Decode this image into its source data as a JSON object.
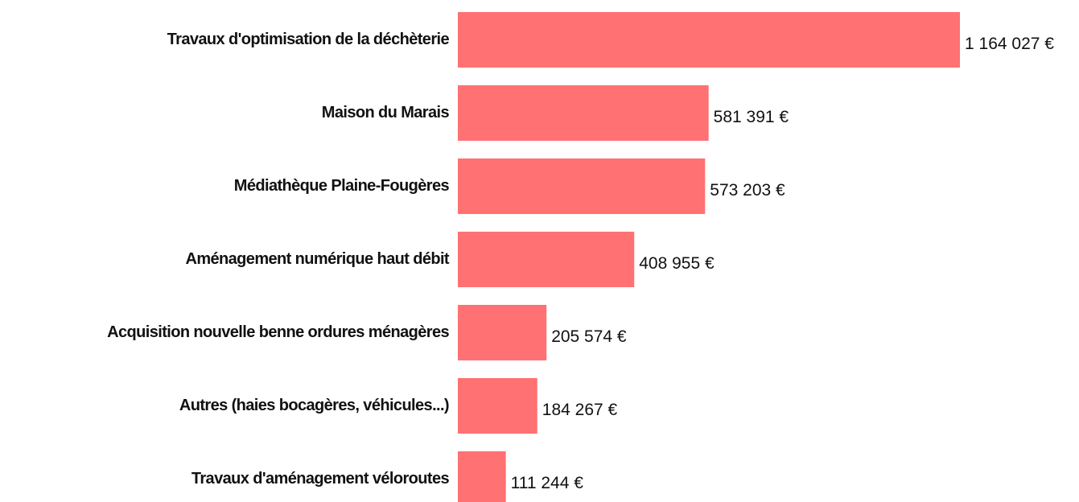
{
  "chart_data": {
    "type": "barh",
    "categories": [
      "Travaux d'optimisation de la déchèterie",
      "Maison du Marais",
      "Médiathèque Plaine-Fougères",
      "Aménagement numérique haut débit",
      "Acquisition nouvelle benne ordures ménagères",
      "Autres (haies bocagères, véhicules...)",
      "Travaux d'aménagement véloroutes"
    ],
    "values": [
      1164027,
      581391,
      573203,
      408955,
      205574,
      184267,
      111244
    ],
    "value_labels": [
      "1 164 027 €",
      "581 391 €",
      "573 203 €",
      "408 955 €",
      "205 574 €",
      "184 267 €",
      "111 244 €"
    ],
    "color": "#ff7173"
  }
}
